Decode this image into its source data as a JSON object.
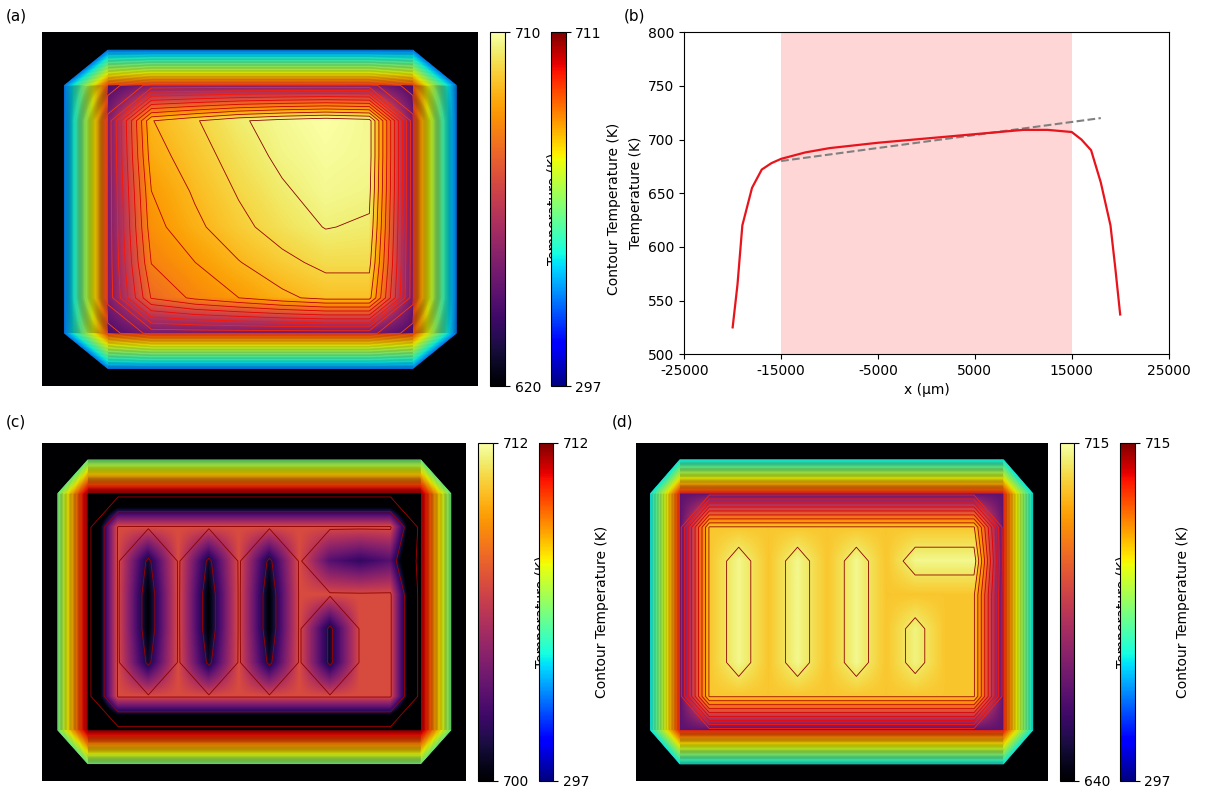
{
  "chart_data": [
    {
      "type": "heatmap",
      "panel_label": "(a)",
      "tick_labels": false,
      "cells": [
        [
          400,
          400,
          400,
          400,
          400,
          400,
          400,
          400,
          400,
          400
        ],
        [
          400,
          640,
          650,
          650,
          650,
          650,
          650,
          650,
          640,
          400
        ],
        [
          400,
          650,
          695,
          700,
          705,
          708,
          710,
          708,
          650,
          400
        ],
        [
          400,
          650,
          693,
          698,
          703,
          707,
          709,
          708,
          650,
          400
        ],
        [
          400,
          650,
          690,
          696,
          701,
          705,
          708,
          707,
          650,
          400
        ],
        [
          400,
          650,
          688,
          694,
          699,
          703,
          706,
          705,
          650,
          400
        ],
        [
          400,
          650,
          685,
          690,
          695,
          699,
          702,
          702,
          650,
          400
        ],
        [
          400,
          650,
          680,
          686,
          690,
          694,
          697,
          697,
          650,
          400
        ],
        [
          400,
          640,
          650,
          650,
          650,
          650,
          650,
          650,
          640,
          400
        ],
        [
          400,
          400,
          400,
          400,
          400,
          400,
          400,
          400,
          400,
          400
        ]
      ],
      "colorbar": {
        "label": "Temperature (K)",
        "range": [
          620,
          710
        ],
        "ticks": [
          620,
          710
        ]
      },
      "contour_colorbar": {
        "label": "Contour Temperature (K)",
        "range": [
          297,
          711
        ],
        "ticks": [
          297,
          711
        ]
      }
    },
    {
      "type": "line",
      "panel_label": "(b)",
      "x": [
        -20000,
        -19500,
        -19000,
        -18000,
        -17000,
        -16000,
        -15000,
        -12500,
        -10000,
        -5000,
        0,
        5000,
        10000,
        12500,
        15000,
        16000,
        17000,
        18000,
        19000,
        19500,
        20000
      ],
      "values": [
        525,
        565,
        620,
        655,
        672,
        678,
        682,
        688,
        692,
        697,
        701,
        705,
        709,
        709,
        707,
        700,
        690,
        660,
        620,
        580,
        537
      ],
      "color": "#e8141c",
      "xlabel": "x (µm)",
      "ylabel": "Temperature (K)",
      "xlim": [
        -25000,
        25000
      ],
      "xticks": [
        -25000,
        -15000,
        -5000,
        5000,
        15000,
        25000
      ],
      "ylim": [
        500,
        800
      ],
      "yticks": [
        500,
        550,
        600,
        650,
        700,
        750,
        800
      ],
      "shaded_region": {
        "x": [
          -15000,
          15000
        ],
        "color": "#ffd6d6"
      },
      "trend_line": {
        "x": [
          -15000,
          18000
        ],
        "y": [
          680,
          720
        ],
        "color": "#808080",
        "line_style": "dashed"
      }
    },
    {
      "type": "heatmap",
      "panel_label": "(c)",
      "tick_labels": false,
      "cells": [
        [
          500,
          500,
          500,
          500,
          500,
          500,
          500,
          500,
          500,
          500,
          500,
          500,
          500,
          500
        ],
        [
          500,
          695,
          695,
          695,
          695,
          695,
          695,
          695,
          695,
          695,
          695,
          695,
          695,
          500
        ],
        [
          500,
          695,
          707,
          707,
          707,
          707,
          707,
          707,
          707,
          707,
          707,
          707,
          695,
          500
        ],
        [
          500,
          695,
          707,
          701,
          707,
          701,
          707,
          701,
          707,
          703,
          702,
          703,
          695,
          500
        ],
        [
          500,
          695,
          707,
          700,
          707,
          700,
          707,
          700,
          707,
          707,
          707,
          707,
          695,
          500
        ],
        [
          500,
          695,
          707,
          700,
          707,
          700,
          707,
          700,
          707,
          701,
          707,
          707,
          695,
          500
        ],
        [
          500,
          695,
          707,
          701,
          707,
          701,
          707,
          701,
          707,
          701,
          707,
          707,
          695,
          500
        ],
        [
          500,
          695,
          707,
          707,
          707,
          707,
          707,
          707,
          707,
          707,
          707,
          707,
          695,
          500
        ],
        [
          500,
          695,
          695,
          695,
          695,
          695,
          695,
          695,
          695,
          695,
          695,
          695,
          695,
          500
        ],
        [
          500,
          500,
          500,
          500,
          500,
          500,
          500,
          500,
          500,
          500,
          500,
          500,
          500,
          500
        ]
      ],
      "colorbar": {
        "label": "Temperature (K)",
        "range": [
          700,
          712
        ],
        "ticks": [
          700,
          712
        ]
      },
      "contour_colorbar": {
        "label": "Contour Temperature (K)",
        "range": [
          297,
          712
        ],
        "ticks": [
          297,
          712
        ]
      }
    },
    {
      "type": "heatmap",
      "panel_label": "(d)",
      "tick_labels": false,
      "cells": [
        [
          450,
          450,
          450,
          450,
          450,
          450,
          450,
          450,
          450,
          450,
          450,
          450,
          450,
          450
        ],
        [
          450,
          660,
          660,
          660,
          660,
          660,
          660,
          660,
          660,
          660,
          660,
          660,
          660,
          450
        ],
        [
          450,
          660,
          705,
          705,
          705,
          705,
          705,
          705,
          705,
          705,
          705,
          705,
          660,
          450
        ],
        [
          450,
          660,
          705,
          713,
          705,
          713,
          705,
          713,
          705,
          713,
          713,
          713,
          660,
          450
        ],
        [
          450,
          660,
          705,
          713,
          705,
          713,
          705,
          713,
          705,
          705,
          705,
          705,
          660,
          450
        ],
        [
          450,
          660,
          705,
          713,
          705,
          713,
          705,
          713,
          705,
          712,
          705,
          705,
          660,
          450
        ],
        [
          450,
          660,
          705,
          713,
          705,
          713,
          705,
          713,
          705,
          712,
          705,
          705,
          660,
          450
        ],
        [
          450,
          660,
          705,
          705,
          705,
          705,
          705,
          705,
          705,
          705,
          705,
          705,
          660,
          450
        ],
        [
          450,
          660,
          660,
          660,
          660,
          660,
          660,
          660,
          660,
          660,
          660,
          660,
          660,
          450
        ],
        [
          450,
          450,
          450,
          450,
          450,
          450,
          450,
          450,
          450,
          450,
          450,
          450,
          450,
          450
        ]
      ],
      "colorbar": {
        "label": "Temperature (K)",
        "range": [
          640,
          715
        ],
        "ticks": [
          640,
          715
        ]
      },
      "contour_colorbar": {
        "label": "Contour Temperature (K)",
        "range": [
          297,
          715
        ],
        "ticks": [
          297,
          715
        ]
      }
    }
  ]
}
